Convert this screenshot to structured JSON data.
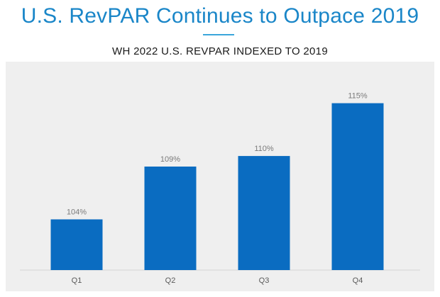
{
  "header": {
    "title": "U.S. RevPAR Continues to Outpace 2019",
    "subtitle": "WH 2022 U.S. REVPAR INDEXED TO 2019"
  },
  "colors": {
    "accent": "#1a86c8",
    "bar": "#0a6cc1",
    "panel_background": "#efefef"
  },
  "chart_data": {
    "type": "bar",
    "title": "WH 2022 U.S. REVPAR INDEXED TO 2019",
    "xlabel": "",
    "ylabel": "",
    "categories": [
      "Q1",
      "Q2",
      "Q3",
      "Q4"
    ],
    "values": [
      104,
      109,
      110,
      115
    ],
    "data_labels": [
      "104%",
      "109%",
      "110%",
      "115%"
    ],
    "ylim": [
      95,
      118
    ],
    "grid": false,
    "legend": "none"
  }
}
